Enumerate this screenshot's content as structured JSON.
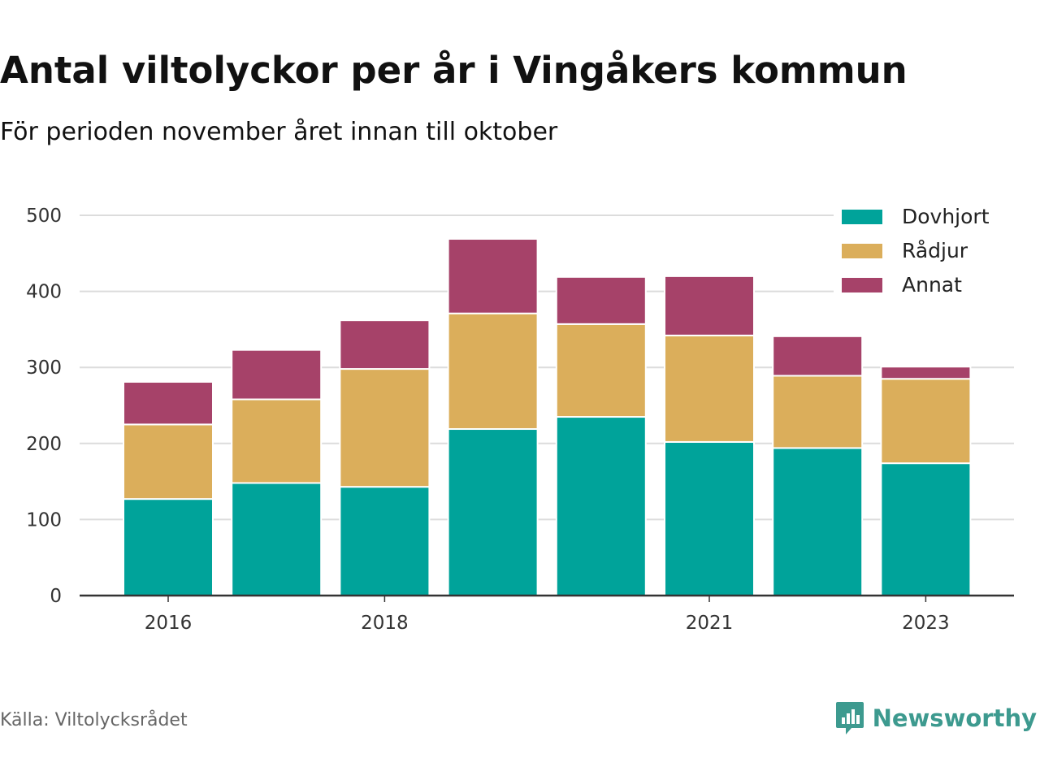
{
  "title": "Antal viltolyckor per år i Vingåkers kommun",
  "subtitle": "För perioden november året innan till oktober",
  "source": "Källa: Viltolycksrådet",
  "brand": "Newsworthy",
  "colors": {
    "Dovhjort": "#00a39a",
    "Rådjur": "#dbae5b",
    "Annat": "#a64269",
    "brand": "#3d9a8f"
  },
  "chart_data": {
    "type": "bar",
    "stacked": true,
    "categories": [
      "2016",
      "2017",
      "2018",
      "2019",
      "2020",
      "2021",
      "2022",
      "2023"
    ],
    "x_tick_labels": [
      "2016",
      "",
      "2018",
      "",
      "",
      "2021",
      "",
      "2023"
    ],
    "series": [
      {
        "name": "Dovhjort",
        "values": [
          127,
          148,
          143,
          219,
          235,
          202,
          194,
          174
        ]
      },
      {
        "name": "Rådjur",
        "values": [
          98,
          110,
          155,
          152,
          122,
          140,
          95,
          111
        ]
      },
      {
        "name": "Annat",
        "values": [
          56,
          65,
          64,
          98,
          62,
          78,
          52,
          16
        ]
      }
    ],
    "ylim": [
      0,
      500
    ],
    "yticks": [
      0,
      100,
      200,
      300,
      400,
      500
    ],
    "legend_position": "top-right",
    "grid": true
  }
}
